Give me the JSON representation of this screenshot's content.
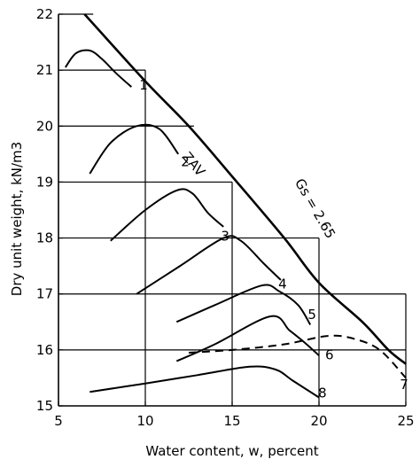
{
  "chart_data": {
    "type": "line",
    "xlabel": "Water content, w, percent",
    "ylabel": "Dry unit weight, kN/m3",
    "xlim": [
      5,
      25
    ],
    "ylim": [
      15,
      22
    ],
    "xticks": [
      "5",
      "10",
      "15",
      "20",
      "25"
    ],
    "yticks": [
      "15",
      "16",
      "17",
      "18",
      "19",
      "20",
      "21",
      "22"
    ],
    "grid": "partial boxes per curve",
    "reference_lines": [
      {
        "y": 22,
        "x_end": 7
      },
      {
        "y": 21,
        "x_end": 10
      },
      {
        "y": 20,
        "x_end": 12.8
      },
      {
        "y": 19,
        "x_end": 15
      },
      {
        "y": 18,
        "x_end": 20
      },
      {
        "y": 17,
        "x_end": 25
      },
      {
        "y": 16,
        "x_end": 25
      }
    ],
    "reference_verticals": [
      {
        "x": 10,
        "y_top": 21
      },
      {
        "x": 15,
        "y_top": 19
      },
      {
        "x": 20,
        "y_top": 18
      }
    ],
    "zav": {
      "label": "ZAV",
      "gs_label": "Gs = 2.65",
      "x": [
        6.5,
        10,
        12.5,
        15,
        18,
        20,
        22.5,
        24,
        25
      ],
      "y": [
        22.0,
        20.8,
        20.0,
        19.1,
        18.0,
        17.2,
        16.5,
        16.0,
        15.75
      ]
    },
    "series": [
      {
        "name": "1",
        "style": "solid",
        "x": [
          5.4,
          6,
          6.8,
          7.5,
          8.3,
          9.2
        ],
        "y": [
          21.05,
          21.3,
          21.35,
          21.2,
          20.95,
          20.7
        ]
      },
      {
        "name": "2",
        "style": "solid",
        "x": [
          6.8,
          8,
          9.5,
          10.8,
          11.9
        ],
        "y": [
          19.15,
          19.7,
          20.0,
          19.95,
          19.5
        ]
      },
      {
        "name": "3",
        "style": "solid",
        "x": [
          8,
          10,
          11.8,
          12.7,
          13.6,
          14.5
        ],
        "y": [
          17.95,
          18.5,
          18.85,
          18.8,
          18.45,
          18.2
        ]
      },
      {
        "name": "4",
        "style": "solid",
        "x": [
          9.5,
          12,
          14.5,
          15.5,
          16.8,
          17.8
        ],
        "y": [
          17.0,
          17.5,
          18.0,
          17.95,
          17.55,
          17.25
        ]
      },
      {
        "name": "5",
        "style": "solid",
        "x": [
          11.8,
          14,
          16.7,
          17.7,
          18.8,
          19.5
        ],
        "y": [
          16.5,
          16.8,
          17.15,
          17.05,
          16.8,
          16.45
        ]
      },
      {
        "name": "6",
        "style": "solid",
        "x": [
          11.8,
          14,
          17.2,
          18.3,
          19.1,
          20
        ],
        "y": [
          15.8,
          16.1,
          16.6,
          16.35,
          16.15,
          15.9
        ]
      },
      {
        "name": "7",
        "style": "dashed",
        "x": [
          12.5,
          15,
          18,
          20.5,
          22,
          23.5,
          25
        ],
        "y": [
          15.95,
          16.0,
          16.1,
          16.25,
          16.2,
          16.0,
          15.5
        ]
      },
      {
        "name": "8",
        "style": "solid",
        "x": [
          6.8,
          10,
          13,
          16,
          17.5,
          18.5,
          20
        ],
        "y": [
          15.25,
          15.4,
          15.55,
          15.7,
          15.65,
          15.45,
          15.15
        ]
      }
    ],
    "curve_labels": [
      {
        "text": "1",
        "x": 9.9,
        "y": 20.65
      },
      {
        "text": "2",
        "x": 12.3,
        "y": 19.28
      },
      {
        "text": "3",
        "x": 14.6,
        "y": 17.95
      },
      {
        "text": "4",
        "x": 17.9,
        "y": 17.1
      },
      {
        "text": "5",
        "x": 19.6,
        "y": 16.55
      },
      {
        "text": "6",
        "x": 20.6,
        "y": 15.83
      },
      {
        "text": "7",
        "x": 24.9,
        "y": 15.3
      },
      {
        "text": "8",
        "x": 20.2,
        "y": 15.15
      }
    ]
  }
}
